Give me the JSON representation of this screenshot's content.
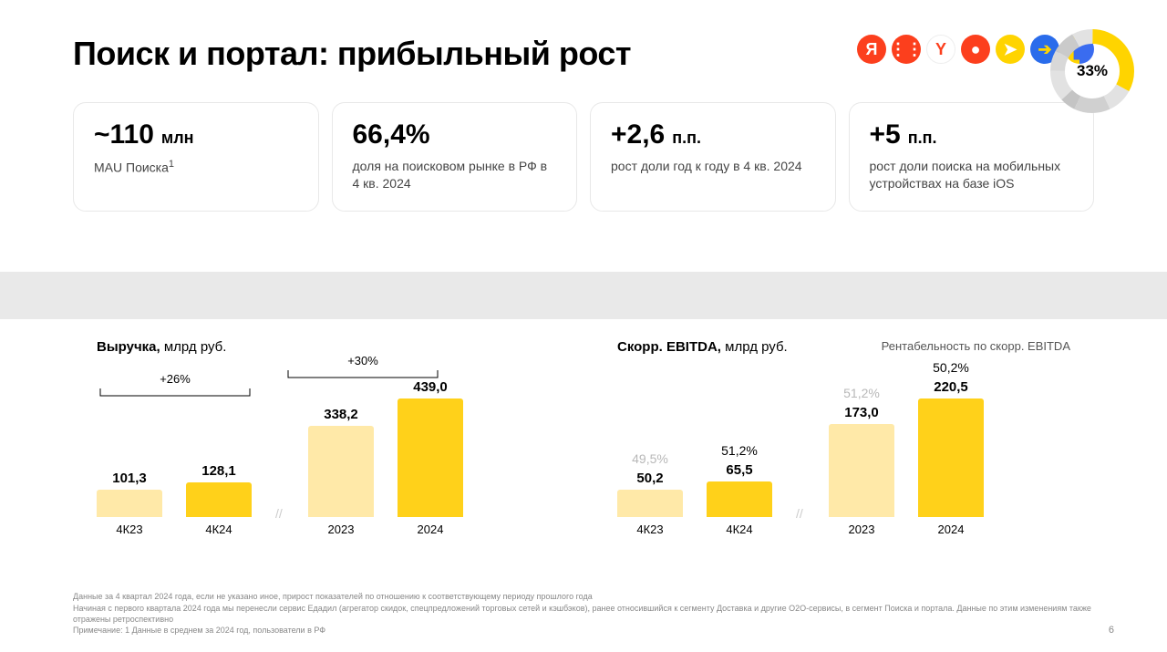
{
  "title": "Поиск и портал: прибыльный рост",
  "donut": {
    "percent_label": "33%",
    "segments": [
      {
        "color": "#ffd400",
        "pct": 33
      },
      {
        "color": "#e2e2e2",
        "pct": 10
      },
      {
        "color": "#d0d0d0",
        "pct": 14
      },
      {
        "color": "#c4c4c4",
        "pct": 6
      },
      {
        "color": "#e2e2e2",
        "pct": 12
      },
      {
        "color": "#d8d8d8",
        "pct": 8
      },
      {
        "color": "#cacaca",
        "pct": 9
      },
      {
        "color": "#e2e2e2",
        "pct": 8
      }
    ]
  },
  "icons": [
    {
      "bg": "#fc3f1d",
      "glyph": "Я",
      "color": "#ffffff"
    },
    {
      "bg": "#fc3f1d",
      "glyph": "⋮⋮",
      "color": "#ffffff"
    },
    {
      "bg": "#ffffff",
      "glyph": "Y",
      "color": "#fc3f1d",
      "border": "#eee"
    },
    {
      "bg": "#fc3f1d",
      "glyph": "●",
      "color": "#ffffff"
    },
    {
      "bg": "#ffd400",
      "glyph": "➤",
      "color": "#ffffff"
    },
    {
      "bg": "#2a6ceb",
      "glyph": "➔",
      "color": "#ffd400"
    },
    {
      "bg": "#ffd400",
      "glyph": "▌",
      "color": "#3a6cf0",
      "half": "#3a6cf0"
    }
  ],
  "metrics": [
    {
      "value": "~110",
      "unit": "млн",
      "desc": "MAU Поиска",
      "sup": "1"
    },
    {
      "value": "66,4%",
      "unit": "",
      "desc": "доля на поисковом рынке в РФ в 4 кв. 2024"
    },
    {
      "value": "+2,6",
      "unit": "п.п.",
      "desc": "рост доли год к году в 4 кв. 2024"
    },
    {
      "value": "+5",
      "unit": "п.п.",
      "desc": "рост доли поиска на мобильных устройствах на базе iOS"
    }
  ],
  "chart1": {
    "title_bold": "Выручка,",
    "title_rest": " млрд руб.",
    "bracket1": "+26%",
    "bracket2": "+30%",
    "colors": {
      "light": "#ffe9a8",
      "dark": "#ffd11a"
    },
    "max": 439,
    "bars": [
      {
        "label": "101,3",
        "value": 101.3,
        "cat": "4К23",
        "shade": "light"
      },
      {
        "label": "128,1",
        "value": 128.1,
        "cat": "4К24",
        "shade": "dark"
      },
      {
        "label": "338,2",
        "value": 338.2,
        "cat": "2023",
        "shade": "light"
      },
      {
        "label": "439,0",
        "value": 439.0,
        "cat": "2024",
        "shade": "dark"
      }
    ]
  },
  "chart2": {
    "title_bold": "Скорр. EBITDA,",
    "title_rest": " млрд руб.",
    "right_label": "Рентабельность по скорр. EBITDA",
    "colors": {
      "light": "#ffe9a8",
      "dark": "#ffd11a"
    },
    "max": 220.5,
    "bars": [
      {
        "label": "50,2",
        "pct": "49,5%",
        "pct_muted": true,
        "value": 50.2,
        "cat": "4К23",
        "shade": "light"
      },
      {
        "label": "65,5",
        "pct": "51,2%",
        "pct_muted": false,
        "value": 65.5,
        "cat": "4К24",
        "shade": "dark"
      },
      {
        "label": "173,0",
        "pct": "51,2%",
        "pct_muted": true,
        "value": 173.0,
        "cat": "2023",
        "shade": "light"
      },
      {
        "label": "220,5",
        "pct": "50,2%",
        "pct_muted": false,
        "value": 220.5,
        "cat": "2024",
        "shade": "dark"
      }
    ]
  },
  "footnotes": [
    "Данные за 4 квартал 2024 года, если не указано иное, прирост показателей по отношению к соответствующему периоду прошлого года",
    "Начиная с первого квартала 2024 года мы перенесли сервис Едадил (агрегатор скидок, спецпредложений торговых сетей и кэшбэков), ранее относившийся к сегменту Доставка и другие O2O-сервисы, в сегмент Поиска и портала. Данные по этим изменениям также отражены ретроспективно",
    "Примечание: 1 Данные в среднем за 2024 год, пользователи в РФ"
  ],
  "page": "6"
}
